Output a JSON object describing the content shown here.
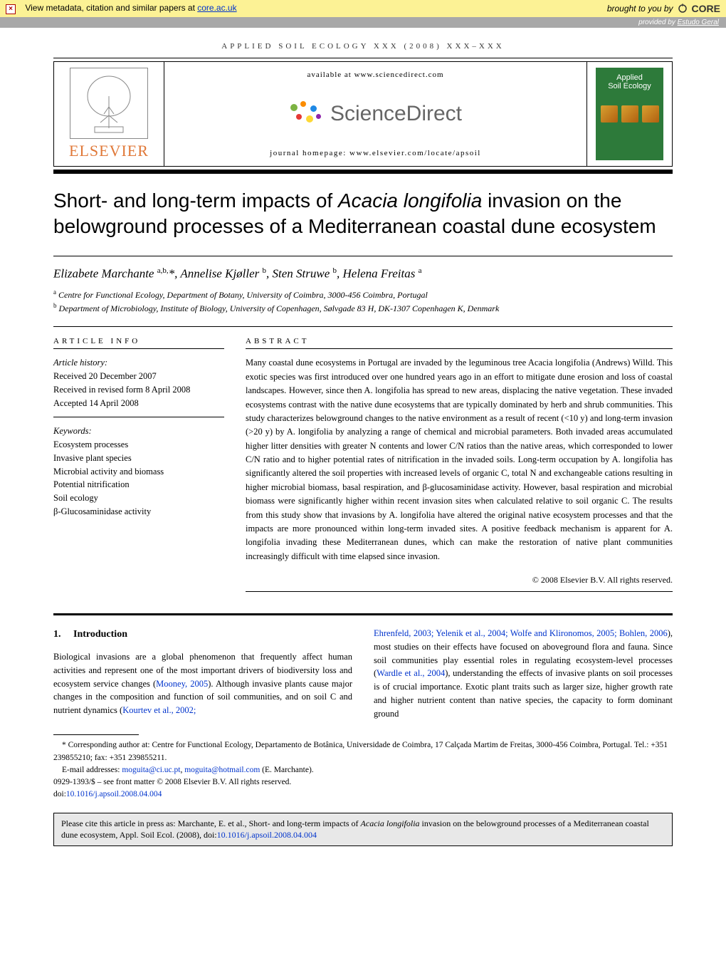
{
  "metadata_bar": {
    "text_prefix": "View metadata, citation and similar papers at ",
    "link_text": "core.ac.uk",
    "brought": "brought to you by",
    "core": "CORE"
  },
  "provider_bar": {
    "prefix": "provided by ",
    "link": "Estudo Geral"
  },
  "journal_header": "APPLIED SOIL ECOLOGY XXX (2008) XXX–XXX",
  "header_band": {
    "elsevier": "ELSEVIER",
    "available": "available at www.sciencedirect.com",
    "sciencedirect": "ScienceDirect",
    "homepage": "journal homepage: www.elsevier.com/locate/apsoil",
    "cover_title": "Applied\nSoil Ecology"
  },
  "title_part1": "Short- and long-term impacts of ",
  "title_italic": "Acacia longifolia",
  "title_part2": " invasion on the belowground processes of a Mediterranean coastal dune ecosystem",
  "authors_html": "Elizabete Marchante <sup>a,b,</sup>*, Annelise Kjøller <sup>b</sup>, Sten Struwe <sup>b</sup>, Helena Freitas <sup>a</sup>",
  "affiliations": {
    "a": "Centre for Functional Ecology, Department of Botany, University of Coimbra, 3000-456 Coimbra, Portugal",
    "b": "Department of Microbiology, Institute of Biology, University of Copenhagen, Sølvgade 83 H, DK-1307 Copenhagen K, Denmark"
  },
  "article_info": {
    "label": "ARTICLE INFO",
    "history_label": "Article history:",
    "received": "Received 20 December 2007",
    "revised": "Received in revised form 8 April 2008",
    "accepted": "Accepted 14 April 2008",
    "keywords_label": "Keywords:",
    "keywords": [
      "Ecosystem processes",
      "Invasive plant species",
      "Microbial activity and biomass",
      "Potential nitrification",
      "Soil ecology",
      "β-Glucosaminidase activity"
    ]
  },
  "abstract": {
    "label": "ABSTRACT",
    "text": "Many coastal dune ecosystems in Portugal are invaded by the leguminous tree Acacia longifolia (Andrews) Willd. This exotic species was first introduced over one hundred years ago in an effort to mitigate dune erosion and loss of coastal landscapes. However, since then A. longifolia has spread to new areas, displacing the native vegetation. These invaded ecosystems contrast with the native dune ecosystems that are typically dominated by herb and shrub communities. This study characterizes belowground changes to the native environment as a result of recent (<10 y) and long-term invasion (>20 y) by A. longifolia by analyzing a range of chemical and microbial parameters. Both invaded areas accumulated higher litter densities with greater N contents and lower C/N ratios than the native areas, which corresponded to lower C/N ratio and to higher potential rates of nitrification in the invaded soils. Long-term occupation by A. longifolia has significantly altered the soil properties with increased levels of organic C, total N and exchangeable cations resulting in higher microbial biomass, basal respiration, and β-glucosaminidase activity. However, basal respiration and microbial biomass were significantly higher within recent invasion sites when calculated relative to soil organic C. The results from this study show that invasions by A. longifolia have altered the original native ecosystem processes and that the impacts are more pronounced within long-term invaded sites. A positive feedback mechanism is apparent for A. longifolia invading these Mediterranean dunes, which can make the restoration of native plant communities increasingly difficult with time elapsed since invasion.",
    "copyright": "© 2008 Elsevier B.V. All rights reserved."
  },
  "intro": {
    "heading_num": "1.",
    "heading": "Introduction",
    "col1_text": "Biological invasions are a global phenomenon that frequently affect human activities and represent one of the most important drivers of biodiversity loss and ecosystem service changes (",
    "col1_ref1": "Mooney, 2005",
    "col1_text2": "). Although invasive plants cause major changes in the composition and function of soil communities, and on soil C and nutrient dynamics (",
    "col1_ref2": "Kourtev et al., 2002;",
    "col2_ref1": "Ehrenfeld, 2003; Yelenik et al., 2004; Wolfe and Klironomos, 2005; Bohlen, 2006",
    "col2_text1": "), most studies on their effects have focused on aboveground flora and fauna. Since soil communities play essential roles in regulating ecosystem-level processes (",
    "col2_ref2": "Wardle et al., 2004",
    "col2_text2": "), understanding the effects of invasive plants on soil processes is of crucial importance. Exotic plant traits such as larger size, higher growth rate and higher nutrient content than native species, the capacity to form dominant ground"
  },
  "footnotes": {
    "corresponding": "* Corresponding author at: Centre for Functional Ecology, Departamento de Botânica, Universidade de Coimbra, 17 Calçada Martim de Freitas, 3000-456 Coimbra, Portugal. Tel.: +351 239855210; fax: +351 239855211.",
    "email_label": "E-mail addresses: ",
    "email1": "moguita@ci.uc.pt",
    "email2": "moguita@hotmail.com",
    "email_suffix": " (E. Marchante).",
    "issn_line": "0929-1393/$ – see front matter © 2008 Elsevier B.V. All rights reserved.",
    "doi_prefix": "doi:",
    "doi": "10.1016/j.apsoil.2008.04.004"
  },
  "citation_box": {
    "text1": "Please cite this article in press as: Marchante, E. et al., Short- and long-term impacts of ",
    "italic": "Acacia longifolia",
    "text2": " invasion on the belowground processes of a Mediterranean coastal dune ecosystem, Appl. Soil Ecol. (2008), doi:",
    "doi": "10.1016/j.apsoil.2008.04.004"
  },
  "colors": {
    "metadata_bg": "#fcf295",
    "provider_bg": "#a8a8a8",
    "elsevier_orange": "#e07838",
    "link_blue": "#0033cc",
    "cover_green": "#2d7a3a",
    "citation_bg": "#e8e8e8"
  }
}
